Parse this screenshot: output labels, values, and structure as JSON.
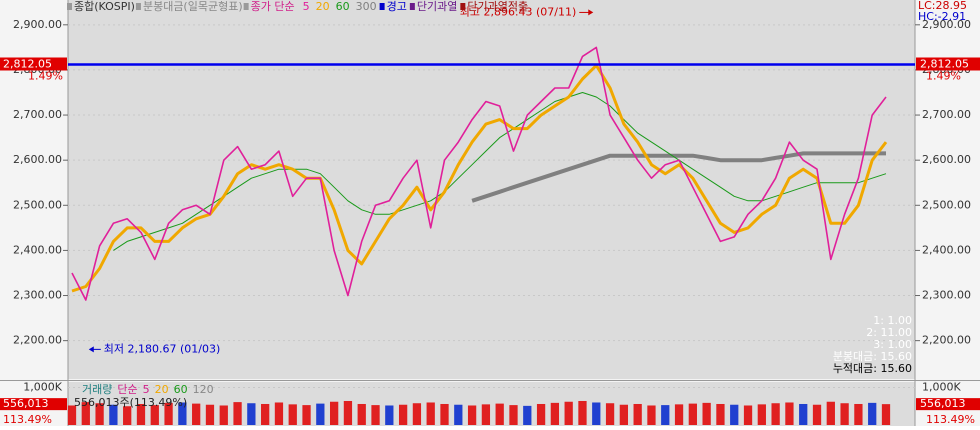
{
  "chart_data": [
    {
      "type": "line",
      "legend_texts": [
        {
          "text": "종합(KOSPI)",
          "color": "#333333"
        },
        {
          "text": "분봉대금(일목균형표)",
          "color": "#888888"
        },
        {
          "text": "종가 단순",
          "color": "#d0208a"
        }
      ],
      "legend_texts_after": [
        {
          "text": "경고",
          "color": "#0000cc"
        },
        {
          "text": "단기과열",
          "color": "#6a1a8a"
        },
        {
          "text": "단기과열적출",
          "color": "#a01010"
        }
      ],
      "corner_texts": [
        "LC:28.95",
        "HC:-2.91"
      ],
      "info_texts": [
        "1: 1.00",
        "2: 11.00",
        "3: 1.00",
        "분봉대금: 15.60",
        "누적대금: 15.60"
      ],
      "series": [
        {
          "name": "5",
          "color": "#e0209a",
          "width": 1.6,
          "values": [
            2350,
            2290,
            2410,
            2460,
            2470,
            2440,
            2380,
            2460,
            2490,
            2500,
            2480,
            2600,
            2630,
            2580,
            2590,
            2620,
            2520,
            2560,
            2560,
            2400,
            2300,
            2420,
            2500,
            2510,
            2560,
            2600,
            2450,
            2600,
            2640,
            2690,
            2730,
            2720,
            2620,
            2700,
            2730,
            2760,
            2760,
            2830,
            2850,
            2700,
            2650,
            2600,
            2560,
            2590,
            2600,
            2540,
            2480,
            2420,
            2430,
            2480,
            2510,
            2560,
            2640,
            2600,
            2580,
            2380,
            2480,
            2560,
            2700,
            2740
          ]
        },
        {
          "name": "20",
          "color": "#f0a800",
          "width": 3,
          "values": [
            2310,
            2320,
            2360,
            2420,
            2450,
            2450,
            2420,
            2420,
            2450,
            2470,
            2480,
            2520,
            2570,
            2590,
            2580,
            2590,
            2580,
            2560,
            2560,
            2490,
            2400,
            2370,
            2420,
            2470,
            2500,
            2540,
            2490,
            2530,
            2590,
            2640,
            2680,
            2690,
            2670,
            2670,
            2700,
            2720,
            2740,
            2780,
            2810,
            2760,
            2680,
            2640,
            2590,
            2570,
            2590,
            2560,
            2510,
            2460,
            2440,
            2450,
            2480,
            2500,
            2560,
            2580,
            2560,
            2460,
            2460,
            2500,
            2600,
            2640
          ]
        },
        {
          "name": "60",
          "color": "#1a9a1a",
          "width": 1,
          "values": [
            null,
            null,
            null,
            2400,
            2420,
            2430,
            2440,
            2450,
            2460,
            2480,
            2500,
            2520,
            2540,
            2560,
            2570,
            2580,
            2580,
            2580,
            2570,
            2540,
            2510,
            2490,
            2480,
            2480,
            2490,
            2500,
            2510,
            2530,
            2560,
            2590,
            2620,
            2650,
            2670,
            2690,
            2710,
            2730,
            2740,
            2750,
            2740,
            2720,
            2690,
            2660,
            2640,
            2620,
            2600,
            2580,
            2560,
            2540,
            2520,
            2510,
            2510,
            2520,
            2530,
            2540,
            2550,
            2550,
            2550,
            2550,
            2560,
            2570
          ]
        },
        {
          "name": "300",
          "color": "#808080",
          "width": 4,
          "values": [
            null,
            null,
            null,
            null,
            null,
            null,
            null,
            null,
            null,
            null,
            null,
            null,
            null,
            null,
            null,
            null,
            null,
            null,
            null,
            null,
            null,
            null,
            null,
            null,
            null,
            null,
            null,
            null,
            null,
            2510,
            2520,
            2530,
            2540,
            2550,
            2560,
            2570,
            2580,
            2590,
            2600,
            2610,
            2610,
            2610,
            2610,
            2610,
            2610,
            2610,
            2605,
            2600,
            2600,
            2600,
            2600,
            2605,
            2610,
            2615,
            2615,
            2615,
            2615,
            2615,
            2615,
            2615
          ]
        }
      ],
      "ylim": [
        2115,
        2955
      ],
      "yticks": [
        {
          "value": 2200,
          "label": "2,200.00"
        },
        {
          "value": 2300,
          "label": "2,300.00"
        },
        {
          "value": 2400,
          "label": "2,400.00"
        },
        {
          "value": 2500,
          "label": "2,500.00"
        },
        {
          "value": 2600,
          "label": "2,600.00"
        },
        {
          "value": 2700,
          "label": "2,700.00"
        },
        {
          "value": 2800,
          "label": "2,800.00"
        },
        {
          "value": 2900,
          "label": "2,900.00"
        }
      ],
      "current": {
        "value": 2812.05,
        "label": "2,812.05",
        "change": "1.49%",
        "color": "#0000ee"
      },
      "annotations": [
        {
          "text": "최고 2,896.43 (07/11)",
          "x": 38,
          "y": 2896.43,
          "color": "#cc0000"
        },
        {
          "text": "최저 2,180.67 (01/03)",
          "x": 1,
          "y": 2180.67,
          "color": "#0000cc"
        }
      ]
    },
    {
      "type": "bar",
      "legend_texts": [
        {
          "text": "거래량",
          "color": "#208080"
        },
        {
          "text": "단순",
          "color": "#d0208a"
        },
        {
          "text": "5",
          "color": "#d0208a"
        },
        {
          "text": "20",
          "color": "#f0a800"
        },
        {
          "text": "60",
          "color": "#1a9a1a"
        },
        {
          "text": "120",
          "color": "#888888"
        }
      ],
      "volume_text": "556,013주(113.49%)",
      "color": "#e02020",
      "values": [
        520,
        610,
        580,
        540,
        500,
        560,
        530,
        590,
        600,
        570,
        540,
        520,
        610,
        580,
        560,
        600,
        550,
        530,
        570,
        620,
        640,
        560,
        530,
        520,
        540,
        580,
        600,
        560,
        540,
        520,
        550,
        570,
        530,
        510,
        560,
        590,
        620,
        640,
        600,
        580,
        540,
        560,
        520,
        530,
        550,
        570,
        590,
        560,
        540,
        520,
        550,
        580,
        600,
        560,
        540,
        620,
        580,
        560,
        590,
        556.013
      ],
      "ylim": [
        0,
        1066
      ],
      "yticks": [
        {
          "value": 1000,
          "label": "1,000K"
        }
      ],
      "current": {
        "value": 556.013,
        "label": "556,013",
        "change": "113.49%"
      }
    }
  ]
}
